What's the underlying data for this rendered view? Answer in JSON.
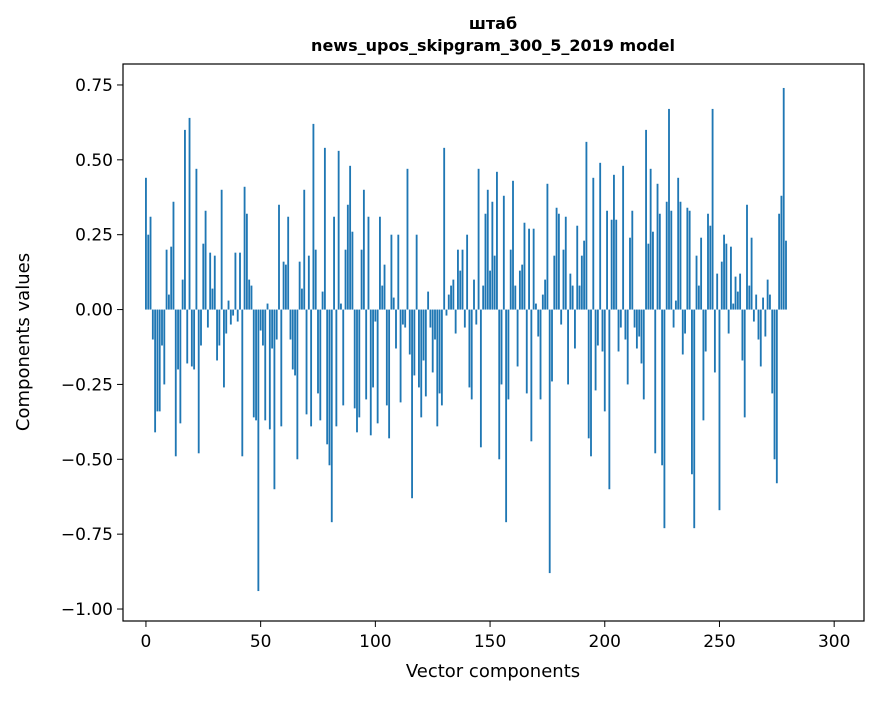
{
  "chart_data": {
    "type": "bar",
    "title_line1": "штаб",
    "title_line2": "news_upos_skipgram_300_5_2019 model",
    "xlabel": "Vector components",
    "ylabel": "Components values",
    "xlim": [
      -10,
      313
    ],
    "ylim": [
      -1.04,
      0.82
    ],
    "xticks": [
      0,
      50,
      100,
      150,
      200,
      250,
      300
    ],
    "xtick_labels": [
      "0",
      "50",
      "100",
      "150",
      "200",
      "250",
      "300"
    ],
    "yticks": [
      0.75,
      0.5,
      0.25,
      0.0,
      -0.25,
      -0.5,
      -0.75,
      -1.0
    ],
    "ytick_labels": [
      "0.75",
      "0.50",
      "0.25",
      "0.00",
      "−0.25",
      "−0.50",
      "−0.75",
      "−1.00"
    ],
    "bar_color": "#1f77b4",
    "values": [
      0.44,
      0.25,
      0.31,
      -0.1,
      -0.41,
      -0.34,
      -0.34,
      -0.12,
      -0.25,
      0.2,
      0.05,
      0.21,
      0.36,
      -0.49,
      -0.2,
      -0.38,
      0.1,
      0.6,
      -0.18,
      0.64,
      -0.19,
      -0.2,
      0.47,
      -0.48,
      -0.12,
      0.22,
      0.33,
      -0.06,
      0.19,
      0.07,
      0.18,
      -0.17,
      -0.12,
      0.4,
      -0.26,
      -0.08,
      0.03,
      -0.05,
      -0.02,
      0.19,
      -0.04,
      0.19,
      -0.49,
      0.41,
      0.32,
      0.1,
      0.08,
      -0.36,
      -0.37,
      -0.94,
      -0.07,
      -0.12,
      -0.37,
      0.02,
      -0.4,
      -0.13,
      -0.6,
      -0.1,
      0.35,
      -0.39,
      0.16,
      0.15,
      0.31,
      -0.1,
      -0.2,
      -0.22,
      -0.5,
      0.16,
      0.07,
      0.4,
      -0.35,
      0.18,
      -0.39,
      0.62,
      0.2,
      -0.28,
      -0.37,
      0.06,
      0.54,
      -0.45,
      -0.52,
      -0.71,
      0.31,
      -0.39,
      0.53,
      0.02,
      -0.32,
      0.2,
      0.35,
      0.48,
      0.26,
      -0.33,
      -0.41,
      -0.36,
      0.2,
      0.4,
      -0.3,
      0.31,
      -0.42,
      -0.26,
      -0.04,
      -0.38,
      0.31,
      0.08,
      0.15,
      -0.32,
      -0.43,
      0.25,
      0.04,
      -0.13,
      0.25,
      -0.31,
      -0.05,
      -0.06,
      0.47,
      -0.15,
      -0.63,
      -0.22,
      0.25,
      -0.26,
      -0.36,
      -0.17,
      -0.29,
      0.06,
      -0.06,
      -0.21,
      -0.1,
      -0.39,
      -0.28,
      -0.32,
      0.54,
      -0.02,
      0.05,
      0.08,
      0.1,
      -0.08,
      0.2,
      0.13,
      0.2,
      -0.06,
      0.25,
      -0.26,
      -0.3,
      0.1,
      -0.05,
      0.47,
      -0.46,
      0.08,
      0.32,
      0.4,
      0.13,
      0.36,
      0.18,
      0.46,
      -0.5,
      -0.25,
      0.38,
      -0.71,
      -0.3,
      0.2,
      0.43,
      0.08,
      -0.19,
      0.13,
      0.15,
      0.29,
      -0.28,
      0.27,
      -0.44,
      0.27,
      0.02,
      -0.09,
      -0.3,
      0.05,
      0.1,
      0.42,
      -0.88,
      -0.24,
      0.18,
      0.34,
      0.32,
      -0.05,
      0.2,
      0.31,
      -0.25,
      0.12,
      0.08,
      -0.13,
      0.28,
      0.08,
      0.18,
      0.23,
      0.56,
      -0.43,
      -0.49,
      0.44,
      -0.27,
      -0.12,
      0.49,
      -0.14,
      -0.34,
      0.33,
      -0.6,
      0.3,
      0.45,
      0.3,
      -0.14,
      -0.06,
      0.48,
      -0.1,
      -0.25,
      0.24,
      0.33,
      -0.06,
      -0.13,
      -0.09,
      -0.18,
      -0.3,
      0.6,
      0.22,
      0.47,
      0.26,
      -0.48,
      0.42,
      0.32,
      -0.52,
      -0.73,
      0.36,
      0.67,
      0.33,
      -0.06,
      0.03,
      0.44,
      0.36,
      -0.15,
      -0.08,
      0.34,
      0.33,
      -0.55,
      -0.73,
      0.18,
      0.08,
      0.24,
      -0.37,
      -0.14,
      0.32,
      0.28,
      0.67,
      -0.21,
      0.12,
      -0.67,
      0.16,
      0.25,
      0.22,
      -0.08,
      0.21,
      0.02,
      0.11,
      0.06,
      0.12,
      -0.17,
      -0.36,
      0.35,
      0.08,
      0.24,
      -0.04,
      0.05,
      -0.1,
      -0.19,
      0.04,
      -0.09,
      0.1,
      0.05,
      -0.28,
      -0.5,
      -0.58,
      0.32,
      0.38,
      0.74,
      0.23
    ]
  }
}
